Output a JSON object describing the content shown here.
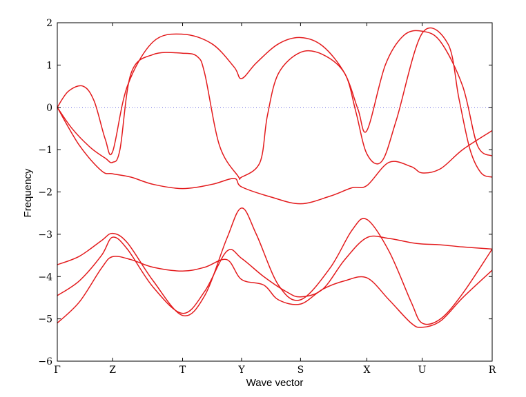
{
  "chart_data": {
    "type": "line",
    "title": "",
    "xlabel": "Wave vector",
    "ylabel": "Frequency",
    "ylim": [
      -6,
      2
    ],
    "yticks": [
      2,
      1,
      0,
      -1,
      -2,
      -3,
      -4,
      -5,
      -6
    ],
    "ytick_labels": [
      "2",
      "1",
      "0",
      "−1",
      "−2",
      "−3",
      "−4",
      "−5",
      "−6"
    ],
    "kpoints": [
      "Γ",
      "Z",
      "T",
      "Y",
      "S",
      "X",
      "U",
      "R"
    ],
    "kpoint_positions": [
      0,
      0.75,
      1.7,
      2.5,
      3.3,
      4.2,
      4.95,
      5.9
    ],
    "xlim": [
      0,
      5.9
    ],
    "zero_line": true,
    "line_color": "#e31a1c",
    "zero_line_color": "#6a6adf",
    "series": [
      {
        "x": [
          0,
          0.15,
          0.35,
          0.5,
          0.65,
          0.75,
          0.95,
          1.3,
          1.7,
          2.1,
          2.4,
          2.5,
          2.7,
          3.0,
          3.3,
          3.6,
          3.9,
          4.08,
          4.2,
          4.45,
          4.7,
          4.95,
          5.2,
          5.5,
          5.7,
          5.9
        ],
        "values": [
          0,
          0.38,
          0.5,
          0.15,
          -0.75,
          -1.05,
          0.5,
          1.55,
          1.73,
          1.5,
          0.95,
          0.68,
          1.05,
          1.5,
          1.65,
          1.45,
          0.8,
          -0.05,
          -0.55,
          1.0,
          1.7,
          1.8,
          1.55,
          0.5,
          -0.9,
          -1.15
        ]
      },
      {
        "x": [
          0,
          0.2,
          0.45,
          0.65,
          0.75,
          0.85,
          1.0,
          1.3,
          1.7,
          1.9,
          2.0,
          2.2,
          2.45,
          2.5,
          2.75,
          2.85,
          3.0,
          3.3,
          3.6,
          3.9,
          4.05,
          4.2,
          4.4,
          4.6,
          4.95,
          5.3,
          5.45,
          5.6,
          5.75,
          5.9
        ],
        "values": [
          0,
          -0.5,
          -0.95,
          -1.2,
          -1.3,
          -1.0,
          0.8,
          1.25,
          1.28,
          1.2,
          0.8,
          -0.9,
          -1.62,
          -1.65,
          -1.3,
          -0.2,
          0.8,
          1.3,
          1.25,
          0.8,
          -0.1,
          -1.1,
          -1.28,
          -0.3,
          1.75,
          1.5,
          0.2,
          -1.0,
          -1.55,
          -1.65
        ]
      },
      {
        "x": [
          0,
          0.3,
          0.6,
          0.75,
          1.0,
          1.3,
          1.7,
          2.1,
          2.4,
          2.5,
          2.9,
          3.3,
          3.7,
          4.0,
          4.2,
          4.5,
          4.8,
          4.95,
          5.2,
          5.5,
          5.9
        ],
        "values": [
          0,
          -0.9,
          -1.5,
          -1.57,
          -1.65,
          -1.82,
          -1.92,
          -1.82,
          -1.68,
          -1.88,
          -2.12,
          -2.28,
          -2.1,
          -1.9,
          -1.85,
          -1.3,
          -1.4,
          -1.55,
          -1.45,
          -1.0,
          -0.55
        ]
      },
      {
        "x": [
          0,
          0.3,
          0.6,
          0.75,
          0.95,
          1.3,
          1.7,
          2.0,
          2.3,
          2.5,
          2.7,
          3.0,
          3.3,
          3.7,
          4.0,
          4.2,
          4.5,
          4.8,
          4.95,
          5.2,
          5.5,
          5.9
        ],
        "values": [
          -3.72,
          -3.52,
          -3.15,
          -2.98,
          -3.2,
          -4.1,
          -4.92,
          -4.45,
          -3.1,
          -2.38,
          -3.0,
          -4.2,
          -4.55,
          -3.8,
          -2.9,
          -2.65,
          -3.4,
          -4.6,
          -5.1,
          -5.0,
          -4.4,
          -3.35
        ]
      },
      {
        "x": [
          0,
          0.3,
          0.6,
          0.75,
          0.95,
          1.3,
          1.7,
          2.0,
          2.3,
          2.5,
          2.8,
          3.1,
          3.3,
          3.6,
          3.9,
          4.2,
          4.5,
          4.8,
          4.95,
          5.2,
          5.5,
          5.9
        ],
        "values": [
          -4.45,
          -4.1,
          -3.5,
          -3.07,
          -3.35,
          -4.25,
          -4.87,
          -4.35,
          -3.4,
          -3.57,
          -4.0,
          -4.35,
          -4.48,
          -4.3,
          -3.6,
          -3.08,
          -3.1,
          -3.2,
          -3.23,
          -3.25,
          -3.3,
          -3.35
        ]
      },
      {
        "x": [
          0,
          0.3,
          0.6,
          0.75,
          1.0,
          1.3,
          1.7,
          2.0,
          2.3,
          2.5,
          2.8,
          3.0,
          3.3,
          3.6,
          3.9,
          4.2,
          4.5,
          4.8,
          4.95,
          5.2,
          5.5,
          5.9
        ],
        "values": [
          -5.1,
          -4.6,
          -3.8,
          -3.53,
          -3.6,
          -3.78,
          -3.87,
          -3.78,
          -3.6,
          -4.07,
          -4.2,
          -4.55,
          -4.65,
          -4.3,
          -4.1,
          -4.03,
          -4.55,
          -5.1,
          -5.2,
          -5.05,
          -4.5,
          -3.85
        ]
      }
    ]
  }
}
